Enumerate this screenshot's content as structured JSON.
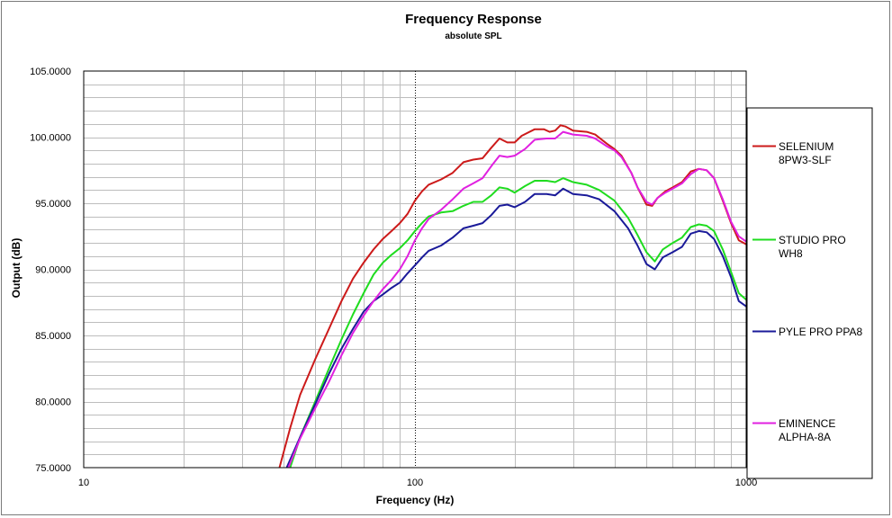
{
  "chart_data": {
    "type": "line",
    "title": "Frequency Response",
    "subtitle": "absolute SPL",
    "xlabel": "Frequency (Hz)",
    "ylabel": "Output (dB)",
    "x_scale": "log",
    "xlim": [
      10,
      1000
    ],
    "ylim": [
      75,
      105
    ],
    "x_ticks": [
      {
        "value": 10,
        "label": "10"
      },
      {
        "value": 100,
        "label": "100"
      },
      {
        "value": 1000,
        "label": "1000"
      }
    ],
    "y_ticks": [
      {
        "value": 105,
        "label": "105.0000"
      },
      {
        "value": 100,
        "label": "100.0000"
      },
      {
        "value": 95,
        "label": "95.0000"
      },
      {
        "value": 90,
        "label": "90.0000"
      },
      {
        "value": 85,
        "label": "85.0000"
      },
      {
        "value": 80,
        "label": "80.0000"
      },
      {
        "value": 75,
        "label": "75.0000"
      }
    ],
    "grid": true,
    "legend_position": "right",
    "series": [
      {
        "name": "SELENIUM 8PW3-SLF",
        "label_lines": [
          "SELENIUM",
          "8PW3-SLF"
        ],
        "color": "#cc1a1a",
        "points": [
          [
            39,
            75
          ],
          [
            42,
            78
          ],
          [
            45,
            80.5
          ],
          [
            50,
            83.2
          ],
          [
            55,
            85.5
          ],
          [
            60,
            87.6
          ],
          [
            65,
            89.3
          ],
          [
            70,
            90.5
          ],
          [
            75,
            91.5
          ],
          [
            80,
            92.3
          ],
          [
            85,
            92.9
          ],
          [
            90,
            93.5
          ],
          [
            95,
            94.2
          ],
          [
            100,
            95.2
          ],
          [
            105,
            95.9
          ],
          [
            110,
            96.4
          ],
          [
            120,
            96.8
          ],
          [
            130,
            97.3
          ],
          [
            140,
            98.1
          ],
          [
            150,
            98.3
          ],
          [
            160,
            98.4
          ],
          [
            170,
            99.2
          ],
          [
            180,
            99.9
          ],
          [
            190,
            99.6
          ],
          [
            200,
            99.6
          ],
          [
            210,
            100.1
          ],
          [
            230,
            100.6
          ],
          [
            245,
            100.6
          ],
          [
            255,
            100.4
          ],
          [
            265,
            100.5
          ],
          [
            275,
            100.9
          ],
          [
            285,
            100.8
          ],
          [
            300,
            100.5
          ],
          [
            330,
            100.4
          ],
          [
            350,
            100.2
          ],
          [
            380,
            99.5
          ],
          [
            400,
            99.1
          ],
          [
            420,
            98.6
          ],
          [
            450,
            97.3
          ],
          [
            470,
            96.2
          ],
          [
            500,
            94.9
          ],
          [
            520,
            94.8
          ],
          [
            540,
            95.4
          ],
          [
            570,
            95.9
          ],
          [
            600,
            96.2
          ],
          [
            640,
            96.6
          ],
          [
            680,
            97.4
          ],
          [
            720,
            97.6
          ],
          [
            760,
            97.5
          ],
          [
            800,
            96.9
          ],
          [
            850,
            95.2
          ],
          [
            900,
            93.5
          ],
          [
            950,
            92.2
          ],
          [
            1000,
            91.9
          ]
        ]
      },
      {
        "name": "STUDIO PRO WH8",
        "label_lines": [
          "STUDIO PRO",
          "WH8"
        ],
        "color": "#1fdc1f",
        "points": [
          [
            42,
            75
          ],
          [
            45,
            77.3
          ],
          [
            50,
            80
          ],
          [
            55,
            82.5
          ],
          [
            60,
            84.7
          ],
          [
            65,
            86.6
          ],
          [
            70,
            88.2
          ],
          [
            75,
            89.6
          ],
          [
            80,
            90.5
          ],
          [
            85,
            91.1
          ],
          [
            90,
            91.6
          ],
          [
            95,
            92.2
          ],
          [
            100,
            92.9
          ],
          [
            105,
            93.5
          ],
          [
            110,
            94
          ],
          [
            120,
            94.3
          ],
          [
            130,
            94.4
          ],
          [
            140,
            94.8
          ],
          [
            150,
            95.1
          ],
          [
            160,
            95.1
          ],
          [
            170,
            95.6
          ],
          [
            180,
            96.2
          ],
          [
            190,
            96.1
          ],
          [
            200,
            95.8
          ],
          [
            215,
            96.3
          ],
          [
            230,
            96.7
          ],
          [
            250,
            96.7
          ],
          [
            265,
            96.6
          ],
          [
            280,
            96.9
          ],
          [
            300,
            96.6
          ],
          [
            330,
            96.4
          ],
          [
            360,
            96
          ],
          [
            400,
            95.2
          ],
          [
            440,
            93.9
          ],
          [
            470,
            92.6
          ],
          [
            500,
            91.3
          ],
          [
            530,
            90.6
          ],
          [
            560,
            91.5
          ],
          [
            600,
            92
          ],
          [
            640,
            92.4
          ],
          [
            680,
            93.2
          ],
          [
            720,
            93.4
          ],
          [
            760,
            93.3
          ],
          [
            800,
            92.9
          ],
          [
            850,
            91.5
          ],
          [
            900,
            89.8
          ],
          [
            950,
            88.2
          ],
          [
            1000,
            87.7
          ]
        ]
      },
      {
        "name": "PYLE PRO PPA8",
        "label_lines": [
          "PYLE PRO PPA8"
        ],
        "color": "#1a1a99",
        "points": [
          [
            41,
            75
          ],
          [
            45,
            77.3
          ],
          [
            50,
            79.8
          ],
          [
            55,
            82.1
          ],
          [
            60,
            84
          ],
          [
            65,
            85.5
          ],
          [
            70,
            86.8
          ],
          [
            75,
            87.6
          ],
          [
            80,
            88.1
          ],
          [
            85,
            88.6
          ],
          [
            90,
            89
          ],
          [
            95,
            89.7
          ],
          [
            100,
            90.3
          ],
          [
            105,
            90.9
          ],
          [
            110,
            91.4
          ],
          [
            120,
            91.8
          ],
          [
            130,
            92.4
          ],
          [
            140,
            93.1
          ],
          [
            150,
            93.3
          ],
          [
            160,
            93.5
          ],
          [
            170,
            94.1
          ],
          [
            180,
            94.8
          ],
          [
            190,
            94.9
          ],
          [
            200,
            94.7
          ],
          [
            215,
            95.1
          ],
          [
            230,
            95.7
          ],
          [
            250,
            95.7
          ],
          [
            265,
            95.6
          ],
          [
            280,
            96.1
          ],
          [
            300,
            95.7
          ],
          [
            330,
            95.6
          ],
          [
            360,
            95.3
          ],
          [
            400,
            94.4
          ],
          [
            440,
            93.1
          ],
          [
            470,
            91.8
          ],
          [
            500,
            90.4
          ],
          [
            530,
            90
          ],
          [
            560,
            90.9
          ],
          [
            600,
            91.3
          ],
          [
            640,
            91.7
          ],
          [
            680,
            92.7
          ],
          [
            720,
            92.9
          ],
          [
            760,
            92.8
          ],
          [
            800,
            92.3
          ],
          [
            850,
            91
          ],
          [
            900,
            89.4
          ],
          [
            950,
            87.6
          ],
          [
            1000,
            87.2
          ]
        ]
      },
      {
        "name": "EMINENCE ALPHA-8A",
        "label_lines": [
          "EMINENCE",
          "ALPHA-8A"
        ],
        "color": "#e020e0",
        "points": [
          [
            41.5,
            75
          ],
          [
            45,
            77.2
          ],
          [
            50,
            79.5
          ],
          [
            55,
            81.5
          ],
          [
            60,
            83.5
          ],
          [
            65,
            85.2
          ],
          [
            70,
            86.5
          ],
          [
            75,
            87.6
          ],
          [
            80,
            88.5
          ],
          [
            85,
            89.2
          ],
          [
            90,
            90
          ],
          [
            95,
            91
          ],
          [
            100,
            92.2
          ],
          [
            105,
            93.1
          ],
          [
            110,
            93.8
          ],
          [
            120,
            94.5
          ],
          [
            130,
            95.3
          ],
          [
            140,
            96.1
          ],
          [
            150,
            96.5
          ],
          [
            160,
            96.9
          ],
          [
            170,
            97.8
          ],
          [
            180,
            98.6
          ],
          [
            190,
            98.5
          ],
          [
            200,
            98.6
          ],
          [
            215,
            99.1
          ],
          [
            230,
            99.8
          ],
          [
            250,
            99.9
          ],
          [
            265,
            99.9
          ],
          [
            280,
            100.4
          ],
          [
            300,
            100.2
          ],
          [
            330,
            100.1
          ],
          [
            350,
            99.9
          ],
          [
            380,
            99.3
          ],
          [
            400,
            99
          ],
          [
            420,
            98.5
          ],
          [
            450,
            97.3
          ],
          [
            470,
            96.2
          ],
          [
            500,
            95.1
          ],
          [
            520,
            94.9
          ],
          [
            540,
            95.4
          ],
          [
            570,
            95.8
          ],
          [
            600,
            96.1
          ],
          [
            640,
            96.5
          ],
          [
            680,
            97.2
          ],
          [
            720,
            97.6
          ],
          [
            760,
            97.5
          ],
          [
            800,
            96.9
          ],
          [
            850,
            95.3
          ],
          [
            900,
            93.6
          ],
          [
            950,
            92.5
          ],
          [
            1000,
            92.1
          ]
        ]
      }
    ]
  }
}
